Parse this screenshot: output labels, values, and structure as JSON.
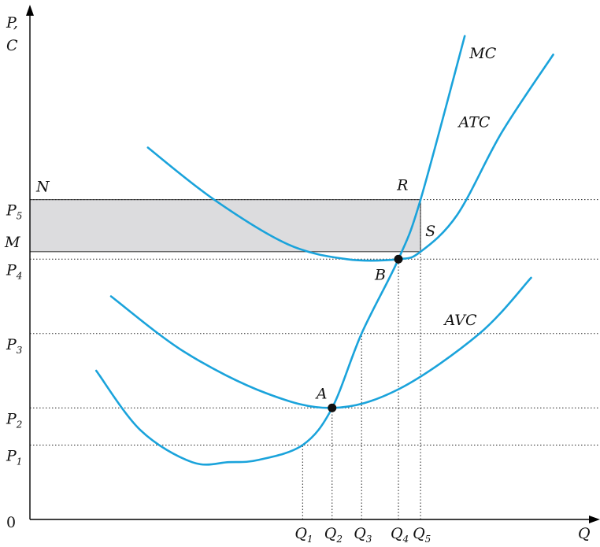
{
  "chart_data": {
    "type": "line",
    "origin_label": "0",
    "ylabel_line1": "P,",
    "ylabel_line2": "C",
    "xlabel": "Q",
    "y_ticks": [
      {
        "letter": "P",
        "sub": "1",
        "value": 1.0
      },
      {
        "letter": "P",
        "sub": "2",
        "value": 1.5
      },
      {
        "letter": "P",
        "sub": "3",
        "value": 2.5
      },
      {
        "letter": "P",
        "sub": "4",
        "value": 3.5
      },
      {
        "letter": "P",
        "sub": "5",
        "value": 4.3
      }
    ],
    "x_ticks": [
      {
        "letter": "Q",
        "sub": "1",
        "value": 3.7
      },
      {
        "letter": "Q",
        "sub": "2",
        "value": 4.1
      },
      {
        "letter": "Q",
        "sub": "3",
        "value": 4.5
      },
      {
        "letter": "Q",
        "sub": "4",
        "value": 5.0
      },
      {
        "letter": "Q",
        "sub": "5",
        "value": 5.3
      }
    ],
    "series": [
      {
        "name": "MC",
        "color": "#1aa3db",
        "points": [
          [
            0.9,
            2.0
          ],
          [
            1.5,
            1.2
          ],
          [
            2.2,
            0.77
          ],
          [
            2.7,
            0.77
          ],
          [
            3.1,
            0.8
          ],
          [
            3.7,
            1.0
          ],
          [
            4.1,
            1.5
          ],
          [
            4.5,
            2.5
          ],
          [
            5.0,
            3.5
          ],
          [
            5.3,
            4.3
          ],
          [
            5.9,
            6.5
          ]
        ]
      },
      {
        "name": "ATC",
        "color": "#1aa3db",
        "points": [
          [
            1.6,
            5.0
          ],
          [
            2.5,
            4.3
          ],
          [
            3.5,
            3.7
          ],
          [
            4.3,
            3.5
          ],
          [
            5.0,
            3.5
          ],
          [
            5.3,
            3.6
          ],
          [
            5.8,
            4.1
          ],
          [
            6.4,
            5.2
          ],
          [
            7.1,
            6.25
          ]
        ]
      },
      {
        "name": "AVC",
        "color": "#1aa3db",
        "points": [
          [
            1.1,
            3.0
          ],
          [
            2.1,
            2.25
          ],
          [
            3.2,
            1.7
          ],
          [
            4.1,
            1.5
          ],
          [
            5.0,
            1.75
          ],
          [
            6.1,
            2.5
          ],
          [
            6.8,
            3.25
          ]
        ]
      }
    ],
    "points": [
      {
        "label": "A",
        "x": 4.1,
        "y": 1.5
      },
      {
        "label": "B",
        "x": 5.0,
        "y": 3.5
      }
    ],
    "area": {
      "label_top": "N",
      "label_bottom": "M",
      "label_tr": "R",
      "label_br": "S",
      "x_to": 5.3,
      "y_top": 4.3,
      "y_bottom": 3.6
    },
    "xlim": [
      0,
      7.5
    ],
    "ylim": [
      0,
      6.9
    ],
    "grid": false,
    "legend": "none"
  }
}
